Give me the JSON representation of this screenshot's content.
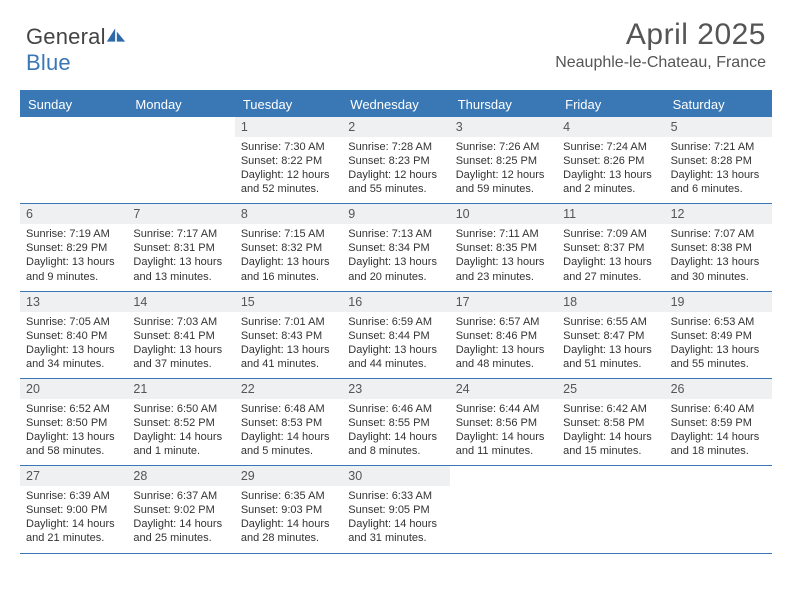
{
  "brand": {
    "name_a": "General",
    "name_b": "Blue"
  },
  "title": "April 2025",
  "location": "Neauphle-le-Chateau, France",
  "colors": {
    "accent": "#3a78b5",
    "header_text": "#ffffff",
    "daybar_bg": "#eef0f2",
    "body_text": "#333333"
  },
  "day_labels": [
    "Sunday",
    "Monday",
    "Tuesday",
    "Wednesday",
    "Thursday",
    "Friday",
    "Saturday"
  ],
  "weeks": [
    [
      null,
      null,
      {
        "n": "1",
        "sunrise": "Sunrise: 7:30 AM",
        "sunset": "Sunset: 8:22 PM",
        "day1": "Daylight: 12 hours",
        "day2": "and 52 minutes."
      },
      {
        "n": "2",
        "sunrise": "Sunrise: 7:28 AM",
        "sunset": "Sunset: 8:23 PM",
        "day1": "Daylight: 12 hours",
        "day2": "and 55 minutes."
      },
      {
        "n": "3",
        "sunrise": "Sunrise: 7:26 AM",
        "sunset": "Sunset: 8:25 PM",
        "day1": "Daylight: 12 hours",
        "day2": "and 59 minutes."
      },
      {
        "n": "4",
        "sunrise": "Sunrise: 7:24 AM",
        "sunset": "Sunset: 8:26 PM",
        "day1": "Daylight: 13 hours",
        "day2": "and 2 minutes."
      },
      {
        "n": "5",
        "sunrise": "Sunrise: 7:21 AM",
        "sunset": "Sunset: 8:28 PM",
        "day1": "Daylight: 13 hours",
        "day2": "and 6 minutes."
      }
    ],
    [
      {
        "n": "6",
        "sunrise": "Sunrise: 7:19 AM",
        "sunset": "Sunset: 8:29 PM",
        "day1": "Daylight: 13 hours",
        "day2": "and 9 minutes."
      },
      {
        "n": "7",
        "sunrise": "Sunrise: 7:17 AM",
        "sunset": "Sunset: 8:31 PM",
        "day1": "Daylight: 13 hours",
        "day2": "and 13 minutes."
      },
      {
        "n": "8",
        "sunrise": "Sunrise: 7:15 AM",
        "sunset": "Sunset: 8:32 PM",
        "day1": "Daylight: 13 hours",
        "day2": "and 16 minutes."
      },
      {
        "n": "9",
        "sunrise": "Sunrise: 7:13 AM",
        "sunset": "Sunset: 8:34 PM",
        "day1": "Daylight: 13 hours",
        "day2": "and 20 minutes."
      },
      {
        "n": "10",
        "sunrise": "Sunrise: 7:11 AM",
        "sunset": "Sunset: 8:35 PM",
        "day1": "Daylight: 13 hours",
        "day2": "and 23 minutes."
      },
      {
        "n": "11",
        "sunrise": "Sunrise: 7:09 AM",
        "sunset": "Sunset: 8:37 PM",
        "day1": "Daylight: 13 hours",
        "day2": "and 27 minutes."
      },
      {
        "n": "12",
        "sunrise": "Sunrise: 7:07 AM",
        "sunset": "Sunset: 8:38 PM",
        "day1": "Daylight: 13 hours",
        "day2": "and 30 minutes."
      }
    ],
    [
      {
        "n": "13",
        "sunrise": "Sunrise: 7:05 AM",
        "sunset": "Sunset: 8:40 PM",
        "day1": "Daylight: 13 hours",
        "day2": "and 34 minutes."
      },
      {
        "n": "14",
        "sunrise": "Sunrise: 7:03 AM",
        "sunset": "Sunset: 8:41 PM",
        "day1": "Daylight: 13 hours",
        "day2": "and 37 minutes."
      },
      {
        "n": "15",
        "sunrise": "Sunrise: 7:01 AM",
        "sunset": "Sunset: 8:43 PM",
        "day1": "Daylight: 13 hours",
        "day2": "and 41 minutes."
      },
      {
        "n": "16",
        "sunrise": "Sunrise: 6:59 AM",
        "sunset": "Sunset: 8:44 PM",
        "day1": "Daylight: 13 hours",
        "day2": "and 44 minutes."
      },
      {
        "n": "17",
        "sunrise": "Sunrise: 6:57 AM",
        "sunset": "Sunset: 8:46 PM",
        "day1": "Daylight: 13 hours",
        "day2": "and 48 minutes."
      },
      {
        "n": "18",
        "sunrise": "Sunrise: 6:55 AM",
        "sunset": "Sunset: 8:47 PM",
        "day1": "Daylight: 13 hours",
        "day2": "and 51 minutes."
      },
      {
        "n": "19",
        "sunrise": "Sunrise: 6:53 AM",
        "sunset": "Sunset: 8:49 PM",
        "day1": "Daylight: 13 hours",
        "day2": "and 55 minutes."
      }
    ],
    [
      {
        "n": "20",
        "sunrise": "Sunrise: 6:52 AM",
        "sunset": "Sunset: 8:50 PM",
        "day1": "Daylight: 13 hours",
        "day2": "and 58 minutes."
      },
      {
        "n": "21",
        "sunrise": "Sunrise: 6:50 AM",
        "sunset": "Sunset: 8:52 PM",
        "day1": "Daylight: 14 hours",
        "day2": "and 1 minute."
      },
      {
        "n": "22",
        "sunrise": "Sunrise: 6:48 AM",
        "sunset": "Sunset: 8:53 PM",
        "day1": "Daylight: 14 hours",
        "day2": "and 5 minutes."
      },
      {
        "n": "23",
        "sunrise": "Sunrise: 6:46 AM",
        "sunset": "Sunset: 8:55 PM",
        "day1": "Daylight: 14 hours",
        "day2": "and 8 minutes."
      },
      {
        "n": "24",
        "sunrise": "Sunrise: 6:44 AM",
        "sunset": "Sunset: 8:56 PM",
        "day1": "Daylight: 14 hours",
        "day2": "and 11 minutes."
      },
      {
        "n": "25",
        "sunrise": "Sunrise: 6:42 AM",
        "sunset": "Sunset: 8:58 PM",
        "day1": "Daylight: 14 hours",
        "day2": "and 15 minutes."
      },
      {
        "n": "26",
        "sunrise": "Sunrise: 6:40 AM",
        "sunset": "Sunset: 8:59 PM",
        "day1": "Daylight: 14 hours",
        "day2": "and 18 minutes."
      }
    ],
    [
      {
        "n": "27",
        "sunrise": "Sunrise: 6:39 AM",
        "sunset": "Sunset: 9:00 PM",
        "day1": "Daylight: 14 hours",
        "day2": "and 21 minutes."
      },
      {
        "n": "28",
        "sunrise": "Sunrise: 6:37 AM",
        "sunset": "Sunset: 9:02 PM",
        "day1": "Daylight: 14 hours",
        "day2": "and 25 minutes."
      },
      {
        "n": "29",
        "sunrise": "Sunrise: 6:35 AM",
        "sunset": "Sunset: 9:03 PM",
        "day1": "Daylight: 14 hours",
        "day2": "and 28 minutes."
      },
      {
        "n": "30",
        "sunrise": "Sunrise: 6:33 AM",
        "sunset": "Sunset: 9:05 PM",
        "day1": "Daylight: 14 hours",
        "day2": "and 31 minutes."
      },
      null,
      null,
      null
    ]
  ]
}
